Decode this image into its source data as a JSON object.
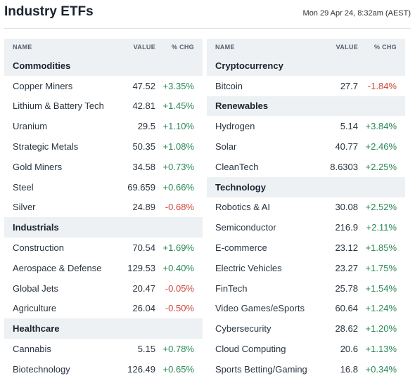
{
  "header": {
    "title": "Industry ETFs",
    "timestamp": "Mon 29 Apr 24, 8:32am (AEST)"
  },
  "columns": {
    "name": "NAME",
    "value": "VALUE",
    "change": "% CHG"
  },
  "colors": {
    "positive": "#2b8a57",
    "negative": "#d2453a",
    "section_bg": "#eef1f4"
  },
  "left": [
    {
      "type": "section",
      "label": "Commodities"
    },
    {
      "type": "row",
      "name": "Copper Miners",
      "value": "47.52",
      "change": "+3.35%",
      "dir": "pos"
    },
    {
      "type": "row",
      "name": "Lithium & Battery Tech",
      "value": "42.81",
      "change": "+1.45%",
      "dir": "pos"
    },
    {
      "type": "row",
      "name": "Uranium",
      "value": "29.5",
      "change": "+1.10%",
      "dir": "pos"
    },
    {
      "type": "row",
      "name": "Strategic Metals",
      "value": "50.35",
      "change": "+1.08%",
      "dir": "pos"
    },
    {
      "type": "row",
      "name": "Gold Miners",
      "value": "34.58",
      "change": "+0.73%",
      "dir": "pos"
    },
    {
      "type": "row",
      "name": "Steel",
      "value": "69.659",
      "change": "+0.66%",
      "dir": "pos"
    },
    {
      "type": "row",
      "name": "Silver",
      "value": "24.89",
      "change": "-0.68%",
      "dir": "neg"
    },
    {
      "type": "section",
      "label": "Industrials"
    },
    {
      "type": "row",
      "name": "Construction",
      "value": "70.54",
      "change": "+1.69%",
      "dir": "pos"
    },
    {
      "type": "row",
      "name": "Aerospace & Defense",
      "value": "129.53",
      "change": "+0.40%",
      "dir": "pos"
    },
    {
      "type": "row",
      "name": "Global Jets",
      "value": "20.47",
      "change": "-0.05%",
      "dir": "neg"
    },
    {
      "type": "row",
      "name": "Agriculture",
      "value": "26.04",
      "change": "-0.50%",
      "dir": "neg"
    },
    {
      "type": "section",
      "label": "Healthcare"
    },
    {
      "type": "row",
      "name": "Cannabis",
      "value": "5.15",
      "change": "+0.78%",
      "dir": "pos"
    },
    {
      "type": "row",
      "name": "Biotechnology",
      "value": "126.49",
      "change": "+0.65%",
      "dir": "pos"
    }
  ],
  "right": [
    {
      "type": "section",
      "label": "Cryptocurrency"
    },
    {
      "type": "row",
      "name": "Bitcoin",
      "value": "27.7",
      "change": "-1.84%",
      "dir": "neg"
    },
    {
      "type": "section",
      "label": "Renewables"
    },
    {
      "type": "row",
      "name": "Hydrogen",
      "value": "5.14",
      "change": "+3.84%",
      "dir": "pos"
    },
    {
      "type": "row",
      "name": "Solar",
      "value": "40.77",
      "change": "+2.46%",
      "dir": "pos"
    },
    {
      "type": "row",
      "name": "CleanTech",
      "value": "8.6303",
      "change": "+2.25%",
      "dir": "pos"
    },
    {
      "type": "section",
      "label": "Technology"
    },
    {
      "type": "row",
      "name": "Robotics & AI",
      "value": "30.08",
      "change": "+2.52%",
      "dir": "pos"
    },
    {
      "type": "row",
      "name": "Semiconductor",
      "value": "216.9",
      "change": "+2.11%",
      "dir": "pos"
    },
    {
      "type": "row",
      "name": "E-commerce",
      "value": "23.12",
      "change": "+1.85%",
      "dir": "pos"
    },
    {
      "type": "row",
      "name": "Electric Vehicles",
      "value": "23.27",
      "change": "+1.75%",
      "dir": "pos"
    },
    {
      "type": "row",
      "name": "FinTech",
      "value": "25.78",
      "change": "+1.54%",
      "dir": "pos"
    },
    {
      "type": "row",
      "name": "Video Games/eSports",
      "value": "60.64",
      "change": "+1.24%",
      "dir": "pos"
    },
    {
      "type": "row",
      "name": "Cybersecurity",
      "value": "28.62",
      "change": "+1.20%",
      "dir": "pos"
    },
    {
      "type": "row",
      "name": "Cloud Computing",
      "value": "20.6",
      "change": "+1.13%",
      "dir": "pos"
    },
    {
      "type": "row",
      "name": "Sports Betting/Gaming",
      "value": "16.8",
      "change": "+0.34%",
      "dir": "pos"
    }
  ]
}
